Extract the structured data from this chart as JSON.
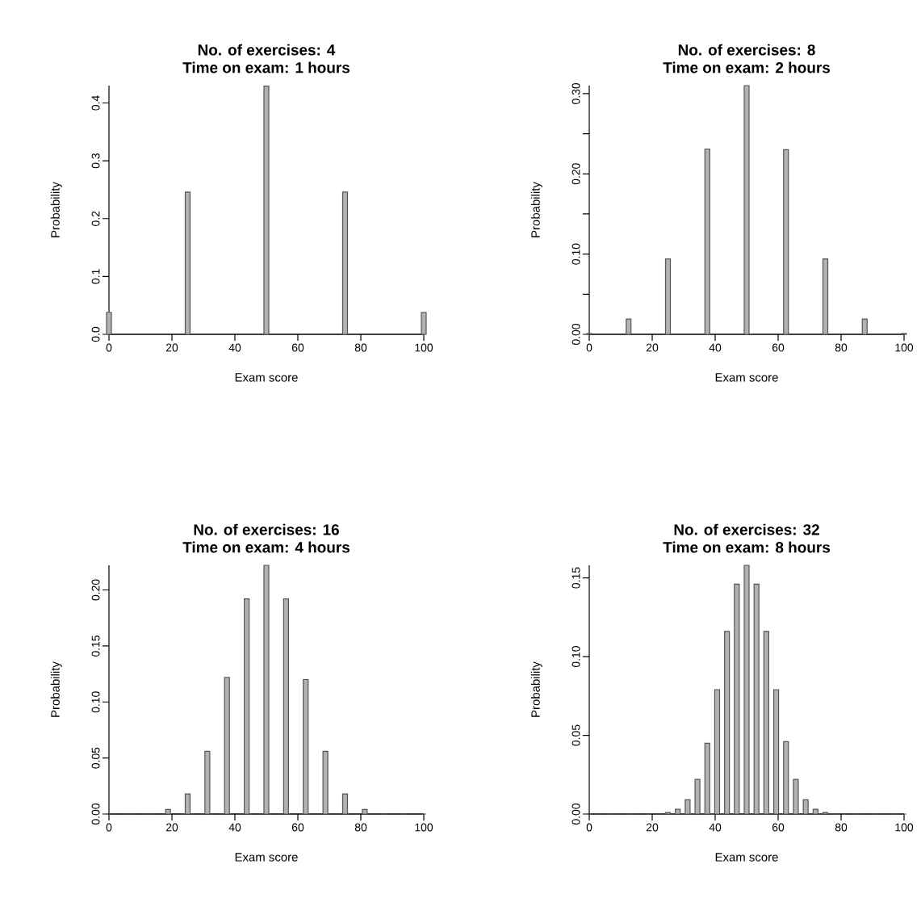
{
  "chart_data": [
    {
      "type": "bar",
      "title": "No. of exercises: 4",
      "subtitle": "Time on exam: 1 hours",
      "xlabel": "Exam score",
      "ylabel": "Probability",
      "color": "#555555",
      "x": [
        0,
        25,
        50,
        75,
        100
      ],
      "values": [
        0.038,
        0.246,
        0.429,
        0.246,
        0.038
      ],
      "xlim": [
        0,
        100
      ],
      "xticks": [
        0,
        20,
        40,
        60,
        80,
        100
      ],
      "ylim": [
        0,
        0.43
      ],
      "yticks": [
        {
          "value": 0,
          "label": "0.0"
        },
        0.1,
        0.2,
        0.3,
        0.4
      ]
    },
    {
      "type": "bar",
      "title": "No. of exercises: 8",
      "subtitle": "Time on exam: 2 hours",
      "xlabel": "Exam score",
      "ylabel": "Probability",
      "color": "#555555",
      "x": [
        0,
        12.5,
        25,
        37.5,
        50,
        62.5,
        75,
        87.5,
        100
      ],
      "values": [
        0.001,
        0.019,
        0.094,
        0.231,
        0.31,
        0.23,
        0.094,
        0.019,
        0.001
      ],
      "xlim": [
        0,
        100
      ],
      "xticks": [
        0,
        20,
        40,
        60,
        80,
        100
      ],
      "ylim": [
        0,
        0.31
      ],
      "yticks": [
        {
          "value": 0,
          "label": "0.00"
        },
        {
          "value": 0.05,
          "label": null
        },
        {
          "value": 0.1,
          "label": "0.10"
        },
        {
          "value": 0.15,
          "label": null
        },
        {
          "value": 0.2,
          "label": "0.20"
        },
        {
          "value": 0.25,
          "label": null
        },
        {
          "value": 0.3,
          "label": "0.30"
        }
      ]
    },
    {
      "type": "bar",
      "title": "No. of exercises: 16",
      "subtitle": "Time on exam: 4 hours",
      "xlabel": "Exam score",
      "ylabel": "Probability",
      "color": "#555555",
      "x": [
        0,
        6.25,
        12.5,
        18.75,
        25,
        31.25,
        37.5,
        43.75,
        50,
        56.25,
        62.5,
        68.75,
        75,
        81.25,
        87.5,
        93.75,
        100
      ],
      "values": [
        0,
        0,
        0,
        0.004,
        0.018,
        0.056,
        0.122,
        0.192,
        0.222,
        0.192,
        0.12,
        0.056,
        0.018,
        0.004,
        0,
        0,
        0
      ],
      "xlim": [
        0,
        100
      ],
      "xticks": [
        0,
        20,
        40,
        60,
        80,
        100
      ],
      "ylim": [
        0,
        0.222
      ],
      "yticks": [
        {
          "value": 0,
          "label": "0.00"
        },
        0.05,
        {
          "value": 0.1,
          "label": "0.10"
        },
        0.15,
        {
          "value": 0.2,
          "label": "0.20"
        }
      ]
    },
    {
      "type": "bar",
      "title": "No. of exercises: 32",
      "subtitle": "Time on exam: 8 hours",
      "xlabel": "Exam score",
      "ylabel": "Probability",
      "color": "#555555",
      "x": [
        0,
        3.125,
        6.25,
        9.375,
        12.5,
        15.625,
        18.75,
        21.875,
        25,
        28.125,
        31.25,
        34.375,
        37.5,
        40.625,
        43.75,
        46.875,
        50,
        53.125,
        56.25,
        59.375,
        62.5,
        65.625,
        68.75,
        71.875,
        75,
        78.125,
        81.25,
        84.375,
        87.5,
        90.625,
        93.75,
        96.875,
        100
      ],
      "values": [
        0,
        0,
        0,
        0,
        0,
        0,
        0,
        0,
        0.001,
        0.003,
        0.009,
        0.022,
        0.045,
        0.079,
        0.116,
        0.146,
        0.158,
        0.146,
        0.116,
        0.079,
        0.046,
        0.022,
        0.009,
        0.003,
        0.001,
        0,
        0,
        0,
        0,
        0,
        0,
        0,
        0
      ],
      "xlim": [
        0,
        100
      ],
      "xticks": [
        0,
        20,
        40,
        60,
        80,
        100
      ],
      "ylim": [
        0,
        0.158
      ],
      "yticks": [
        {
          "value": 0,
          "label": "0.00"
        },
        0.05,
        {
          "value": 0.1,
          "label": "0.10"
        },
        0.15
      ]
    }
  ]
}
